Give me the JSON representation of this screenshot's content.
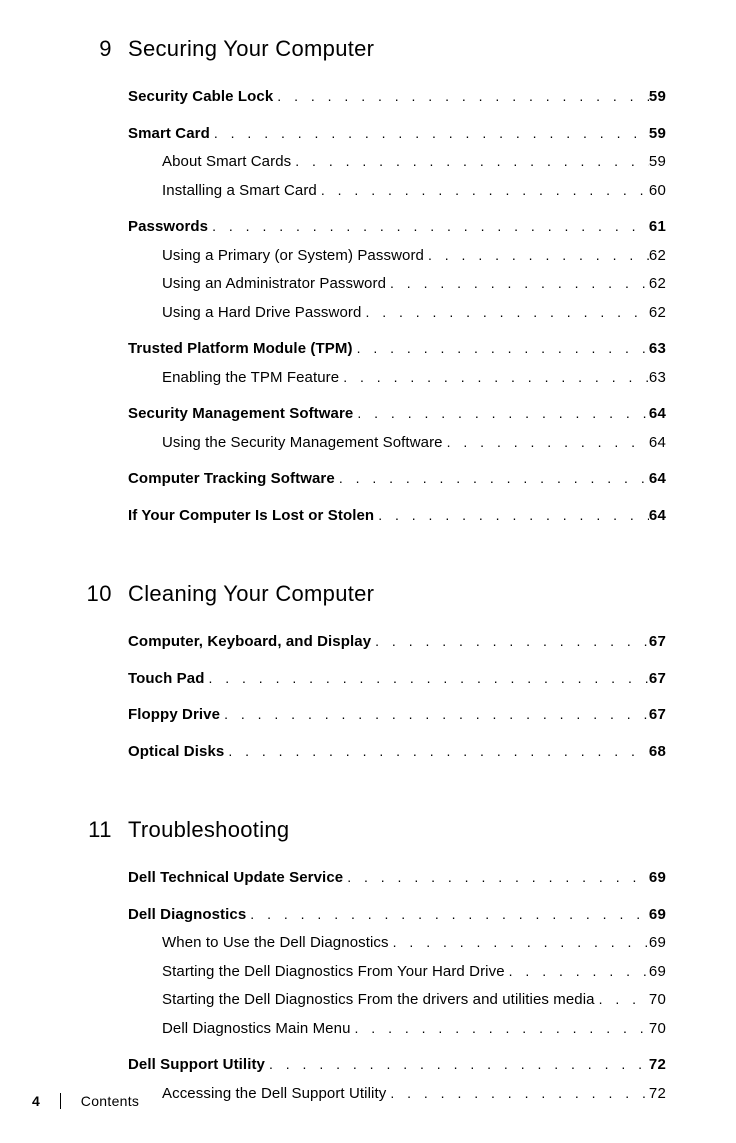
{
  "footer": {
    "pageNumber": "4",
    "label": "Contents"
  },
  "chapters": [
    {
      "number": "9",
      "title": "Securing Your Computer",
      "entries": [
        {
          "label": "Security Cable Lock",
          "page": "59",
          "level": 0
        },
        {
          "label": "Smart Card",
          "page": "59",
          "level": 0
        },
        {
          "label": "About Smart Cards",
          "page": "59",
          "level": 1
        },
        {
          "label": "Installing a Smart Card",
          "page": "60",
          "level": 1
        },
        {
          "label": "Passwords",
          "page": "61",
          "level": 0
        },
        {
          "label": "Using a Primary (or System) Password",
          "page": "62",
          "level": 1
        },
        {
          "label": "Using an Administrator Password",
          "page": "62",
          "level": 1
        },
        {
          "label": "Using a Hard Drive Password",
          "page": "62",
          "level": 1
        },
        {
          "label": "Trusted Platform Module (TPM)",
          "page": "63",
          "level": 0
        },
        {
          "label": "Enabling the TPM Feature",
          "page": "63",
          "level": 1
        },
        {
          "label": "Security Management Software",
          "page": "64",
          "level": 0
        },
        {
          "label": "Using the Security Management Software",
          "page": "64",
          "level": 1
        },
        {
          "label": "Computer Tracking Software",
          "page": "64",
          "level": 0
        },
        {
          "label": "If Your Computer Is Lost or Stolen",
          "page": "64",
          "level": 0
        }
      ]
    },
    {
      "number": "10",
      "title": "Cleaning Your Computer",
      "entries": [
        {
          "label": "Computer, Keyboard, and Display",
          "page": "67",
          "level": 0
        },
        {
          "label": "Touch Pad",
          "page": "67",
          "level": 0
        },
        {
          "label": "Floppy Drive",
          "page": "67",
          "level": 0
        },
        {
          "label": "Optical Disks",
          "page": "68",
          "level": 0
        }
      ]
    },
    {
      "number": "11",
      "title": "Troubleshooting",
      "entries": [
        {
          "label": "Dell Technical Update Service",
          "page": "69",
          "level": 0
        },
        {
          "label": "Dell Diagnostics",
          "page": "69",
          "level": 0
        },
        {
          "label": "When to Use the Dell Diagnostics",
          "page": "69",
          "level": 1
        },
        {
          "label": "Starting the Dell Diagnostics From Your Hard Drive",
          "page": "69",
          "level": 1
        },
        {
          "label": "Starting the Dell Diagnostics From the drivers and utilities media",
          "page": "70",
          "level": 1
        },
        {
          "label": "Dell Diagnostics Main Menu",
          "page": "70",
          "level": 1
        },
        {
          "label": "Dell Support Utility",
          "page": "72",
          "level": 0
        },
        {
          "label": "Accessing the Dell Support Utility",
          "page": "72",
          "level": 1
        }
      ]
    }
  ]
}
